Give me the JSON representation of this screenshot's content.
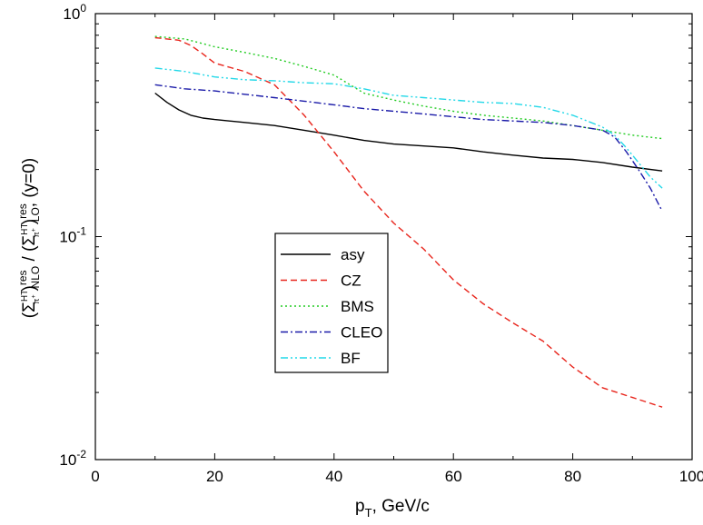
{
  "chart_data": {
    "type": "line",
    "xlabel": {
      "main": "p",
      "sub": "T",
      "rest": ", GeV/c"
    },
    "ylabel": {
      "num_open": "(Σ",
      "num_sup": "HT",
      "num_sub": "π",
      "num_subsup": "+",
      "num_close": ")",
      "num_res": "res",
      "num_lo": "NLO",
      "slash": " / ",
      "den_open": "(Σ",
      "den_sup": "HT",
      "den_sub": "π",
      "den_subsup": "+",
      "den_close": ")",
      "den_res": "res",
      "den_lo": "LO",
      "tail": ", (y=0)"
    },
    "xlim": [
      0,
      100
    ],
    "ylim": [
      0.01,
      1
    ],
    "yscale": "log",
    "x_ticks": [
      "0",
      "20",
      "40",
      "60",
      "80",
      "100"
    ],
    "y_ticks": [
      {
        "base": "10",
        "exp": "0",
        "value": 1
      },
      {
        "base": "10",
        "exp": "-1",
        "value": 0.1
      },
      {
        "base": "10",
        "exp": "-2",
        "value": 0.01
      }
    ],
    "legend_position": "center",
    "series": [
      {
        "name": "asy",
        "color": "#000000",
        "dash": "solid",
        "x": [
          10,
          12,
          14,
          16,
          18,
          20,
          25,
          30,
          35,
          40,
          45,
          50,
          55,
          60,
          65,
          70,
          75,
          80,
          85,
          90,
          95
        ],
        "y": [
          0.44,
          0.4,
          0.37,
          0.35,
          0.34,
          0.335,
          0.325,
          0.315,
          0.3,
          0.285,
          0.27,
          0.26,
          0.255,
          0.25,
          0.24,
          0.232,
          0.225,
          0.222,
          0.215,
          0.205,
          0.197
        ]
      },
      {
        "name": "CZ",
        "color": "#e8251c",
        "dash": "dashed",
        "x": [
          10,
          14,
          16,
          18,
          20,
          25,
          30,
          35,
          40,
          45,
          50,
          55,
          60,
          65,
          70,
          75,
          80,
          85,
          90,
          95
        ],
        "y": [
          0.78,
          0.76,
          0.72,
          0.66,
          0.6,
          0.55,
          0.48,
          0.35,
          0.24,
          0.16,
          0.115,
          0.088,
          0.064,
          0.05,
          0.041,
          0.034,
          0.026,
          0.021,
          0.019,
          0.0172
        ]
      },
      {
        "name": "BMS",
        "color": "#22cc22",
        "dash": "dotted",
        "x": [
          10,
          15,
          20,
          25,
          30,
          35,
          40,
          45,
          50,
          55,
          60,
          65,
          70,
          75,
          80,
          85,
          90,
          95
        ],
        "y": [
          0.79,
          0.77,
          0.71,
          0.67,
          0.63,
          0.58,
          0.53,
          0.44,
          0.41,
          0.385,
          0.365,
          0.35,
          0.34,
          0.33,
          0.315,
          0.3,
          0.285,
          0.275
        ]
      },
      {
        "name": "CLEO",
        "color": "#1a1aa8",
        "dash": "dashdot",
        "x": [
          10,
          15,
          20,
          25,
          30,
          35,
          40,
          45,
          50,
          55,
          60,
          65,
          70,
          75,
          80,
          85,
          87,
          89,
          91,
          93,
          95
        ],
        "y": [
          0.48,
          0.46,
          0.45,
          0.435,
          0.42,
          0.405,
          0.39,
          0.375,
          0.365,
          0.355,
          0.345,
          0.335,
          0.33,
          0.325,
          0.315,
          0.3,
          0.28,
          0.24,
          0.2,
          0.165,
          0.13
        ]
      },
      {
        "name": "BF",
        "color": "#22d8e8",
        "dash": "dashdotdot",
        "x": [
          10,
          15,
          20,
          25,
          30,
          35,
          40,
          45,
          50,
          55,
          60,
          65,
          70,
          75,
          80,
          85,
          87,
          89,
          91,
          93,
          95
        ],
        "y": [
          0.57,
          0.55,
          0.52,
          0.505,
          0.5,
          0.49,
          0.485,
          0.46,
          0.43,
          0.42,
          0.41,
          0.4,
          0.395,
          0.38,
          0.35,
          0.31,
          0.285,
          0.25,
          0.215,
          0.185,
          0.165
        ]
      }
    ]
  }
}
